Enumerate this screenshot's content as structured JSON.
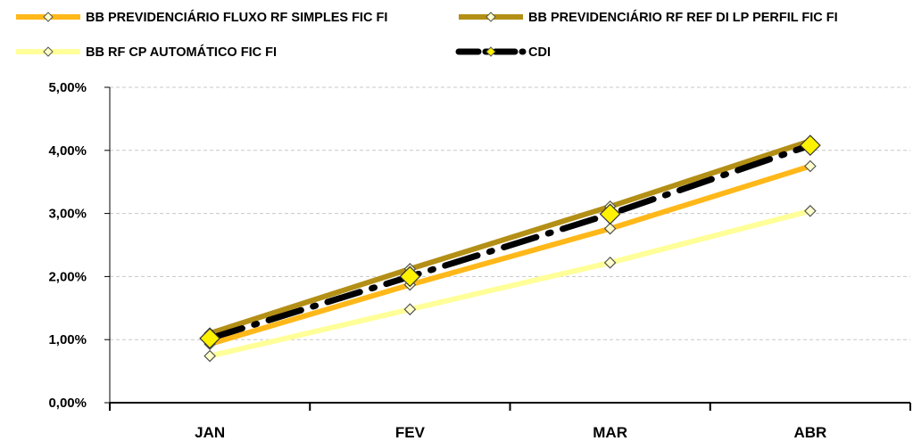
{
  "chart_data": {
    "type": "line",
    "categories": [
      "JAN",
      "FEV",
      "MAR",
      "ABR"
    ],
    "ylim": [
      0,
      5
    ],
    "yticks": [
      "0,00%",
      "1,00%",
      "2,00%",
      "3,00%",
      "4,00%",
      "5,00%"
    ],
    "grid": "horizontal-dashed",
    "legend_position": "top",
    "series": [
      {
        "name": "BB PREVIDENCIÁRIO FLUXO RF SIMPLES FIC FI",
        "color": "#FFB819",
        "style": "solid",
        "values": [
          0.93,
          1.87,
          2.76,
          3.75
        ]
      },
      {
        "name": "BB PREVIDENCIÁRIO RF REF DI LP PERFIL FIC FI",
        "color": "#B38F16",
        "style": "solid",
        "values": [
          1.1,
          2.12,
          3.11,
          4.15
        ]
      },
      {
        "name": "BB RF CP AUTOMÁTICO FIC FI",
        "color": "#FFFF99",
        "style": "solid",
        "values": [
          0.74,
          1.48,
          2.22,
          3.04
        ]
      },
      {
        "name": "CDI",
        "color": "#000000",
        "style": "dash-dot",
        "values": [
          1.02,
          2.0,
          2.99,
          4.08
        ]
      }
    ]
  }
}
